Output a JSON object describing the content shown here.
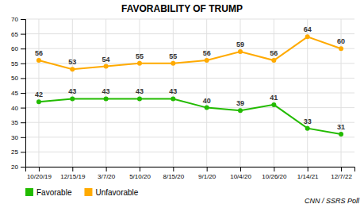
{
  "chart_data": {
    "type": "line",
    "title": "FAVORABILITY OF TRUMP",
    "categories": [
      "10/20/19",
      "12/15/19",
      "3/7/20",
      "5/10/20",
      "8/15/20",
      "9/1/20",
      "10/4/20",
      "10/26/20",
      "1/14/21",
      "12/7/22"
    ],
    "series": [
      {
        "name": "Favorable",
        "color": "#22bb00",
        "marker": "circle",
        "values": [
          42,
          43,
          43,
          43,
          43,
          40,
          39,
          41,
          33,
          31
        ]
      },
      {
        "name": "Unfavorable",
        "color": "#ffaa00",
        "marker": "circle",
        "values": [
          56,
          53,
          54,
          55,
          55,
          56,
          59,
          56,
          64,
          60
        ]
      }
    ],
    "ylim": [
      20,
      70
    ],
    "yticks": [
      20,
      25,
      30,
      35,
      40,
      45,
      50,
      55,
      60,
      65,
      70
    ],
    "grid": true,
    "legend": "bottom",
    "data_labels": true,
    "source": "CNN / SSRS Poll"
  }
}
